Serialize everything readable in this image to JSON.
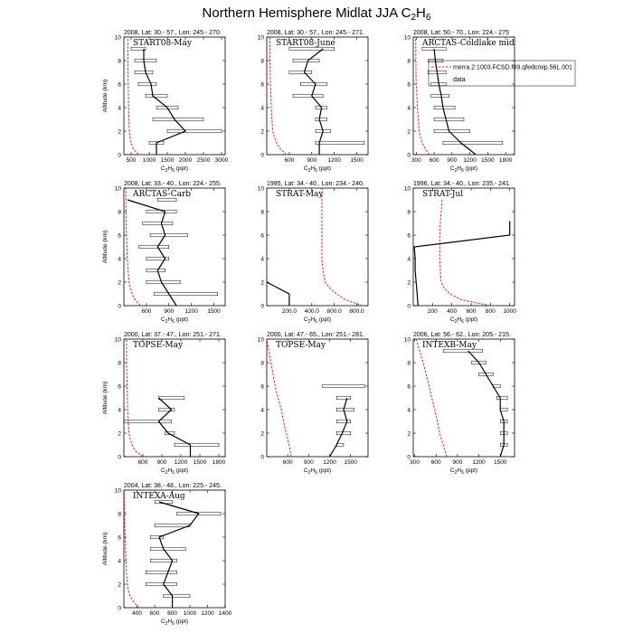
{
  "figure": {
    "title_main": "Northern Hemisphere Midlat JJA C",
    "title_sub": "2",
    "title_main2": "H",
    "title_sub2": "6",
    "ylabel": "Altitude (km)",
    "xlabel_main": "C",
    "xlabel_sub1": "2",
    "xlabel_mid": "H",
    "xlabel_sub2": "6",
    "xlabel_unit": " (ppt)"
  },
  "legend": {
    "model_label": "merra.2.1003.FCSD.f09.qfedcmip.56L.001",
    "data_label": "data",
    "model_color": "#e8211b",
    "data_color": "#000000"
  },
  "chart_data": [
    {
      "type": "line",
      "title": "2008, Lat: 30.- 57., Lon: 245.- 270.",
      "label": "START08-May",
      "xlim": [
        300,
        3100
      ],
      "ylim": [
        0,
        10
      ],
      "xticks": [
        500,
        1000,
        1500,
        2000,
        2500,
        3000
      ],
      "yticks": [
        0,
        2,
        4,
        6,
        8,
        10
      ],
      "model": {
        "x": [
          700,
          560,
          500,
          470,
          450,
          440,
          430,
          425,
          420,
          415,
          410
        ],
        "y": [
          0,
          0.5,
          1,
          1.5,
          2,
          3,
          4,
          5,
          6,
          7,
          10
        ]
      },
      "obs": {
        "x": [
          1200,
          1200,
          2000,
          1700,
          1500,
          1100,
          1050,
          900,
          850,
          850
        ],
        "y": [
          0,
          1,
          2,
          3,
          4,
          5,
          6,
          7,
          8,
          9
        ]
      },
      "boxes": [
        [
          1000,
          1400,
          1
        ],
        [
          1500,
          3000,
          2
        ],
        [
          1100,
          2500,
          3
        ],
        [
          1200,
          1800,
          4
        ],
        [
          900,
          1500,
          5
        ],
        [
          700,
          1200,
          6
        ],
        [
          600,
          1100,
          7
        ],
        [
          600,
          1200,
          8
        ],
        [
          500,
          900,
          9
        ]
      ]
    },
    {
      "type": "line",
      "title": "2008, Lat: 30.- 57., Lon: 245.- 271.",
      "label": "START08-June",
      "xlim": [
        300,
        1650
      ],
      "ylim": [
        0,
        10
      ],
      "xticks": [
        600,
        900,
        1200,
        1500
      ],
      "yticks": [
        0,
        2,
        4,
        6,
        8,
        10
      ],
      "model": {
        "x": [
          560,
          480,
          430,
          400,
          380,
          370,
          360,
          355,
          350,
          345,
          340
        ],
        "y": [
          0,
          0.5,
          1,
          1.5,
          2,
          3,
          4,
          5,
          6,
          7,
          10
        ]
      },
      "obs": {
        "x": [
          1000,
          1000,
          1050,
          1000,
          1030,
          900,
          950,
          800,
          850,
          1050
        ],
        "y": [
          0,
          1,
          2,
          3,
          4,
          5,
          6,
          7,
          8,
          9
        ]
      },
      "boxes": [
        [
          950,
          1600,
          1
        ],
        [
          950,
          1150,
          2
        ],
        [
          950,
          1100,
          3
        ],
        [
          950,
          1100,
          4
        ],
        [
          650,
          1050,
          5
        ],
        [
          750,
          1100,
          6
        ],
        [
          600,
          900,
          7
        ],
        [
          650,
          1000,
          8
        ],
        [
          600,
          1200,
          9
        ]
      ]
    },
    {
      "type": "line",
      "title": "2008, Lat: 50.- 70., Lon: 224.- 275",
      "label": "ARCTAS-Coldlake mid",
      "xlim": [
        250,
        1950
      ],
      "ylim": [
        0,
        10
      ],
      "xticks": [
        300,
        600,
        900,
        1200,
        1500,
        1800
      ],
      "yticks": [
        0,
        2,
        4,
        6,
        8,
        10
      ],
      "model": {
        "x": [
          520,
          450,
          400,
          370,
          350,
          335,
          320,
          310,
          300,
          295,
          290
        ],
        "y": [
          0,
          0.5,
          1,
          1.5,
          2,
          3,
          4,
          5,
          6,
          7,
          10
        ]
      },
      "obs": {
        "x": [
          1300,
          1050,
          850,
          800,
          750,
          720,
          680,
          650,
          620,
          600
        ],
        "y": [
          0,
          1,
          2,
          3,
          4,
          5,
          6,
          7,
          8,
          9
        ]
      },
      "boxes": [
        [
          750,
          1750,
          1
        ],
        [
          600,
          1200,
          2
        ],
        [
          600,
          1100,
          3
        ],
        [
          600,
          950,
          4
        ],
        [
          550,
          850,
          5
        ],
        [
          550,
          800,
          6
        ],
        [
          500,
          800,
          7
        ],
        [
          500,
          750,
          8
        ],
        [
          400,
          800,
          9
        ]
      ]
    },
    {
      "type": "line",
      "title": "2008, Lat: 33.- 40., Lon: 224.- 255.",
      "label": "ARCTAS-Carb",
      "xlim": [
        300,
        1650
      ],
      "ylim": [
        0,
        10
      ],
      "xticks": [
        600,
        900,
        1200,
        1500
      ],
      "yticks": [
        0,
        2,
        4,
        6,
        8,
        10
      ],
      "model": {
        "x": [
          520,
          450,
          410,
          385,
          370,
          355,
          345,
          340,
          335,
          330,
          325
        ],
        "y": [
          0,
          0.5,
          1,
          1.5,
          2,
          3,
          4,
          5,
          6,
          7,
          10
        ]
      },
      "obs": {
        "x": [
          1000,
          900,
          800,
          750,
          850,
          750,
          850,
          800,
          850,
          350
        ],
        "y": [
          0,
          1,
          2,
          3,
          4,
          5,
          6,
          7,
          8,
          9
        ]
      },
      "boxes": [
        [
          700,
          1550,
          1
        ],
        [
          600,
          1050,
          2
        ],
        [
          600,
          850,
          3
        ],
        [
          600,
          900,
          4
        ],
        [
          500,
          900,
          5
        ],
        [
          650,
          1150,
          6
        ],
        [
          550,
          950,
          7
        ],
        [
          600,
          1000,
          8
        ],
        [
          750,
          1000,
          9
        ]
      ]
    },
    {
      "type": "line",
      "title": "1995, Lat: 34.- 40., Lon: 234.- 240.",
      "label": "STRAT-May",
      "xlim": [
        0,
        900
      ],
      "ylim": [
        0,
        10
      ],
      "xticks": [
        200,
        400,
        600,
        800
      ],
      "xticklabels": [
        "200.0",
        "400.0",
        "600.0",
        "800.0"
      ],
      "yticks": [
        0,
        2,
        4,
        6,
        8,
        10
      ],
      "model": {
        "x": [
          850,
          700,
          620,
          560,
          520,
          500,
          490,
          490,
          490,
          490,
          490
        ],
        "y": [
          0,
          0.5,
          1,
          1.5,
          2,
          3,
          4,
          5,
          6,
          7,
          10
        ]
      },
      "obs": {
        "x": [
          200,
          200,
          0
        ],
        "y": [
          0,
          1,
          2
        ]
      },
      "boxes": []
    },
    {
      "type": "line",
      "title": "1996, Lat: 34.- 40., Lon: 235.- 241.",
      "label": "STRAT-Jul",
      "xlim": [
        0,
        1050
      ],
      "ylim": [
        0,
        10
      ],
      "xticks": [
        200,
        400,
        600,
        800,
        1000
      ],
      "yticks": [
        0,
        2,
        4,
        6,
        8,
        10
      ],
      "model": {
        "x": [
          800,
          500,
          380,
          320,
          290,
          280,
          275,
          275,
          275,
          280,
          300
        ],
        "y": [
          0,
          0.5,
          1,
          1.5,
          2,
          3,
          4,
          5,
          6,
          7,
          9
        ]
      },
      "obs": {
        "x": [
          50,
          40,
          30,
          20,
          20,
          10,
          1000,
          1000
        ],
        "y": [
          0,
          1,
          2,
          3,
          4,
          5,
          6,
          7.2
        ]
      },
      "boxes": []
    },
    {
      "type": "line",
      "title": "2000, Lat: 37.- 47., Lon: 251.- 271.",
      "label": "TOPSE-May",
      "xlim": [
        300,
        1900
      ],
      "ylim": [
        0,
        10
      ],
      "xticks": [
        600,
        900,
        1200,
        1500,
        1800
      ],
      "yticks": [
        0,
        2,
        4,
        6,
        8,
        10
      ],
      "model": {
        "x": [
          600,
          480,
          430,
          400,
          380,
          370,
          360,
          355,
          350,
          345,
          340
        ],
        "y": [
          0,
          0.5,
          1,
          1.5,
          2,
          3,
          4,
          5,
          6,
          7,
          10
        ]
      },
      "obs": {
        "x": [
          1350,
          1350,
          1000,
          850,
          1050,
          850
        ],
        "y": [
          0,
          1,
          2,
          3,
          4,
          5
        ]
      },
      "boxes": [
        [
          1100,
          1800,
          1
        ],
        [
          950,
          1100,
          2
        ],
        [
          300,
          1050,
          3
        ],
        [
          850,
          1100,
          4
        ],
        [
          850,
          1250,
          5
        ]
      ]
    },
    {
      "type": "line",
      "title": "2000, Lat: 47.- 65., Lon: 251.- 281.",
      "label": "TOPSE-May",
      "xlim": [
        300,
        1750
      ],
      "ylim": [
        0,
        10
      ],
      "xticks": [
        600,
        900,
        1200,
        1500
      ],
      "yticks": [
        0,
        2,
        4,
        6,
        8,
        10
      ],
      "model": {
        "x": [
          650,
          620,
          580,
          540,
          510,
          460,
          420,
          390,
          360,
          330,
          300
        ],
        "y": [
          0,
          1,
          2,
          3,
          4,
          5,
          6,
          7,
          8,
          9,
          10
        ]
      },
      "obs": {
        "x": [
          1200,
          1300,
          1380,
          1450,
          1400,
          1450
        ],
        "y": [
          0,
          1,
          2,
          3,
          4,
          5
        ]
      },
      "boxes": [
        [
          1300,
          1400,
          1
        ],
        [
          1300,
          1500,
          2
        ],
        [
          1300,
          1500,
          3
        ],
        [
          1300,
          1550,
          4
        ],
        [
          1300,
          1500,
          5
        ],
        [
          1100,
          1700,
          6
        ]
      ]
    },
    {
      "type": "line",
      "title": "2006, Lat: 56.- 62., Lon: 205.- 215.",
      "label": "INTEXB-May",
      "xlim": [
        280,
        1700
      ],
      "ylim": [
        0,
        10
      ],
      "xticks": [
        300,
        600,
        900,
        1200,
        1500
      ],
      "yticks": [
        0,
        2,
        4,
        6,
        8,
        10
      ],
      "model": {
        "x": [
          750,
          700,
          650,
          620,
          580,
          540,
          500,
          460,
          420,
          370,
          320
        ],
        "y": [
          0,
          1,
          2,
          3,
          4,
          5,
          6,
          7,
          8,
          9,
          10
        ]
      },
      "obs": {
        "x": [
          1500,
          1550,
          1550,
          1550,
          1500,
          1500,
          1400,
          1300,
          1200,
          1050
        ],
        "y": [
          0,
          1,
          2,
          3,
          4,
          5,
          6,
          7,
          8,
          9
        ]
      },
      "boxes": [
        [
          1500,
          1600,
          1
        ],
        [
          1500,
          1600,
          2
        ],
        [
          1500,
          1600,
          3
        ],
        [
          1500,
          1600,
          4
        ],
        [
          1450,
          1600,
          5
        ],
        [
          1400,
          1500,
          6
        ],
        [
          1200,
          1400,
          7
        ],
        [
          1100,
          1300,
          8
        ],
        [
          700,
          1250,
          9
        ]
      ]
    },
    {
      "type": "line",
      "title": "2004, Lat: 38.- 48., Lon: 225.- 245.",
      "label": "INTEXA-Aug",
      "xlim": [
        250,
        1400
      ],
      "ylim": [
        0,
        10
      ],
      "xticks": [
        400,
        600,
        800,
        1000,
        1200,
        1400
      ],
      "yticks": [
        0,
        2,
        4,
        6,
        8,
        10
      ],
      "model": {
        "x": [
          420,
          360,
          320,
          300,
          290,
          280,
          275,
          270,
          265,
          260,
          255
        ],
        "y": [
          0,
          0.5,
          1,
          1.5,
          2,
          3,
          4,
          5,
          6,
          7,
          10
        ]
      },
      "obs": {
        "x": [
          800,
          800,
          700,
          750,
          800,
          700,
          650,
          1000,
          1100,
          650
        ],
        "y": [
          0,
          1,
          2,
          3,
          4,
          5,
          6,
          7,
          8,
          9
        ]
      },
      "boxes": [
        [
          700,
          1000,
          1
        ],
        [
          500,
          850,
          2
        ],
        [
          500,
          850,
          3
        ],
        [
          550,
          850,
          4
        ],
        [
          550,
          950,
          5
        ],
        [
          550,
          700,
          6
        ],
        [
          600,
          1000,
          7
        ],
        [
          850,
          1350,
          8
        ],
        [
          600,
          800,
          9
        ]
      ]
    }
  ]
}
